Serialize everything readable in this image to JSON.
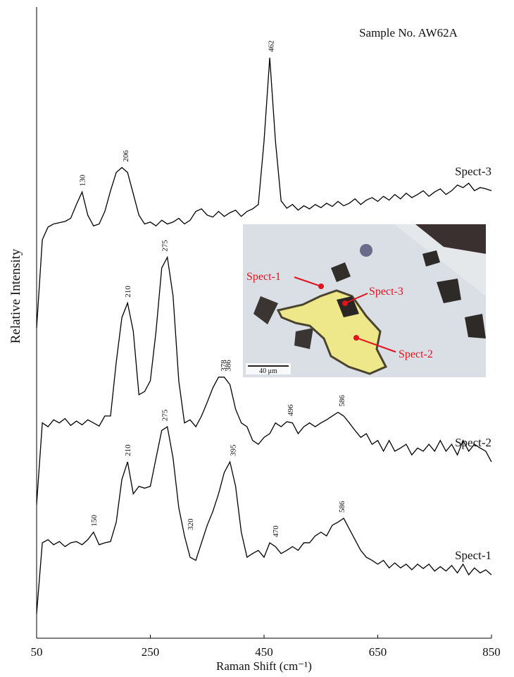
{
  "chart_data": {
    "type": "line",
    "title": "Sample No. AW62A",
    "x_label": "Raman Shift (cm⁻¹)",
    "y_label": "Relative Intensity",
    "xlim": [
      50,
      850
    ],
    "xticks": [
      50,
      250,
      450,
      650,
      850
    ],
    "ylim": [
      0,
      100
    ],
    "x": [
      50,
      60,
      70,
      80,
      90,
      100,
      110,
      120,
      130,
      140,
      150,
      160,
      170,
      180,
      190,
      200,
      210,
      220,
      230,
      240,
      250,
      260,
      270,
      280,
      290,
      300,
      310,
      320,
      330,
      340,
      350,
      360,
      370,
      380,
      390,
      400,
      410,
      420,
      430,
      440,
      450,
      460,
      470,
      480,
      490,
      500,
      510,
      520,
      530,
      540,
      550,
      560,
      570,
      580,
      590,
      600,
      610,
      620,
      630,
      640,
      650,
      660,
      670,
      680,
      690,
      700,
      710,
      720,
      730,
      740,
      750,
      760,
      770,
      780,
      790,
      800,
      810,
      820,
      830,
      840,
      850
    ],
    "series": [
      {
        "name": "Spect-3",
        "color": "#000000",
        "peaks": [
          130,
          206,
          462
        ],
        "values": [
          49.4,
          63.5,
          65.5,
          66,
          66.2,
          66.4,
          66.9,
          69.1,
          71.1,
          67.4,
          65.7,
          66,
          68,
          71.3,
          74.2,
          75,
          74.2,
          70.8,
          67.4,
          66,
          66.3,
          65.7,
          66.6,
          66,
          66.3,
          66.9,
          66,
          66.6,
          68,
          68.4,
          67.4,
          67.1,
          68,
          67.2,
          67.8,
          68.2,
          67.2,
          68,
          68.4,
          69.1,
          79.2,
          92.5,
          79.2,
          69.7,
          68.5,
          69.1,
          68.2,
          68.9,
          68.4,
          69.1,
          68.6,
          69.3,
          68.8,
          69.6,
          68.9,
          69.3,
          70,
          69.1,
          69.8,
          70.2,
          69.6,
          70.4,
          69.8,
          70.7,
          70,
          70.9,
          70.2,
          70.7,
          71.3,
          70.4,
          71.1,
          71.6,
          70.7,
          71.3,
          72.2,
          71.8,
          72.5,
          71.3,
          71.8,
          71.6,
          71.3
        ]
      },
      {
        "name": "Spect-2",
        "color": "#000000",
        "peaks": [
          210,
          275,
          378,
          386,
          496,
          586
        ],
        "values": [
          21.3,
          34.3,
          33.7,
          34.8,
          34.3,
          35,
          33.9,
          34.6,
          34,
          34.8,
          34.3,
          33.8,
          35.4,
          35.4,
          44,
          51.1,
          53.4,
          48.9,
          38.8,
          39.3,
          41,
          48.9,
          59,
          60.7,
          54.5,
          41,
          34.3,
          34.8,
          33.7,
          35.4,
          37.6,
          39.9,
          41.6,
          41.6,
          40.4,
          36.5,
          34.3,
          33.7,
          31.5,
          30.9,
          32,
          32.6,
          34.3,
          33.7,
          34.5,
          34.3,
          32.6,
          33.7,
          34.3,
          33.7,
          34.3,
          34.8,
          35.4,
          36,
          35.4,
          34.3,
          33.1,
          32,
          32.6,
          30.9,
          31.5,
          29.8,
          31.5,
          29.8,
          30.3,
          30.9,
          29.2,
          30.3,
          29.8,
          30.9,
          29.8,
          31.5,
          29.8,
          30.9,
          29.2,
          31.5,
          29.8,
          30.9,
          30.3,
          29.8,
          28.1
        ]
      },
      {
        "name": "Spect-1",
        "color": "#000000",
        "peaks": [
          150,
          210,
          275,
          320,
          395,
          470,
          586
        ],
        "values": [
          3.9,
          15.2,
          15.7,
          14.9,
          15.4,
          14.6,
          15.2,
          15.4,
          14.9,
          15.7,
          16.9,
          14.9,
          15.2,
          15.4,
          18.5,
          25.3,
          28.1,
          23,
          24.2,
          23.9,
          24.2,
          28.7,
          33.1,
          33.7,
          28.7,
          20.8,
          16.3,
          12.9,
          12.4,
          15.2,
          18,
          20.2,
          23,
          26.4,
          28.1,
          24.2,
          16.9,
          12.9,
          13.5,
          14,
          12.9,
          15.2,
          14.6,
          13.5,
          14,
          14.6,
          14,
          15.2,
          15.2,
          16.3,
          16.9,
          16.3,
          18,
          18.5,
          19.1,
          17.4,
          15.7,
          14,
          12.9,
          12.4,
          11.8,
          12.4,
          11.2,
          12,
          11.2,
          11.8,
          10.9,
          11.8,
          11.1,
          11.8,
          10.7,
          11.4,
          10.7,
          11.6,
          10.4,
          11.8,
          10.1,
          11.2,
          10.4,
          10.9,
          10.1
        ]
      }
    ]
  },
  "inset": {
    "labels": [
      "Spect-1",
      "Spect-3",
      "Spect-2"
    ],
    "scale_bar": "40 μm"
  }
}
